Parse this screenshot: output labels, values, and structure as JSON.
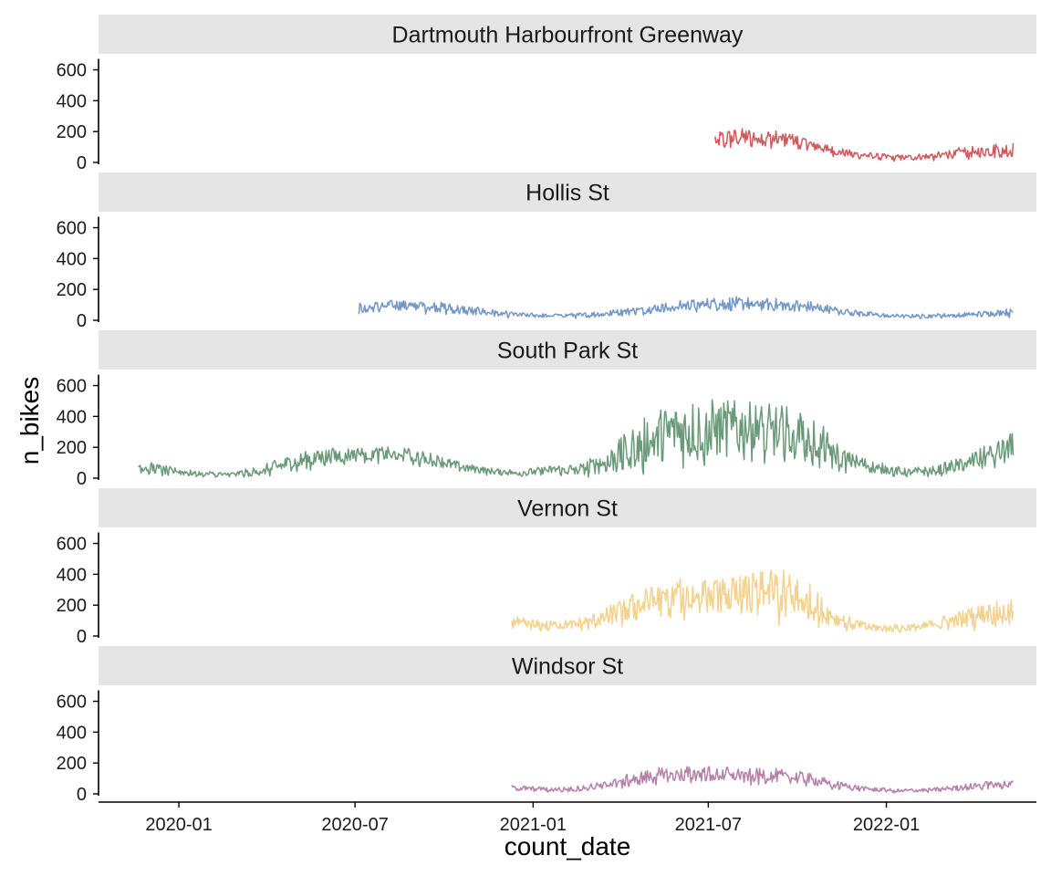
{
  "chart_data": {
    "type": "line",
    "xlabel": "count_date",
    "ylabel": "n_bikes",
    "x_ticks": [
      "2020-01",
      "2020-07",
      "2021-01",
      "2021-07",
      "2022-01"
    ],
    "y_ticks": [
      0,
      200,
      400,
      600
    ],
    "xlim": [
      "2019-10-10",
      "2022-06-05"
    ],
    "ylim": [
      0,
      680
    ],
    "grid": false,
    "legend": "none",
    "facets": "rows",
    "panels": [
      {
        "name": "Dartmouth Harbourfront Greenway",
        "color": "#D1585C",
        "profile": {
          "dates": [
            "2021-07-08",
            "2021-08-15",
            "2021-09-20",
            "2021-10-20",
            "2021-11-20",
            "2021-12-20",
            "2022-01-20",
            "2022-02-20",
            "2022-03-20",
            "2022-04-20",
            "2022-05-12"
          ],
          "mean": [
            150,
            170,
            150,
            110,
            60,
            40,
            30,
            45,
            65,
            80,
            85
          ],
          "amp": [
            60,
            55,
            50,
            40,
            25,
            20,
            18,
            22,
            35,
            45,
            50
          ]
        }
      },
      {
        "name": "Hollis St",
        "color": "#7397C5",
        "profile": {
          "dates": [
            "2020-07-05",
            "2020-08-15",
            "2020-09-20",
            "2020-10-20",
            "2020-11-20",
            "2020-12-20",
            "2021-01-20",
            "2021-02-20",
            "2021-03-20",
            "2021-04-20",
            "2021-05-20",
            "2021-06-20",
            "2021-07-20",
            "2021-08-20",
            "2021-09-20",
            "2021-10-20",
            "2021-11-20",
            "2021-12-20",
            "2022-01-20",
            "2022-02-20",
            "2022-03-20",
            "2022-04-20",
            "2022-05-12"
          ],
          "mean": [
            80,
            100,
            90,
            70,
            50,
            35,
            30,
            35,
            45,
            65,
            85,
            100,
            110,
            105,
            100,
            85,
            55,
            35,
            25,
            30,
            35,
            45,
            55
          ],
          "amp": [
            35,
            35,
            35,
            30,
            20,
            15,
            12,
            15,
            20,
            25,
            35,
            40,
            45,
            45,
            40,
            35,
            20,
            15,
            12,
            14,
            15,
            20,
            25
          ]
        }
      },
      {
        "name": "South Park St",
        "color": "#6A9A79",
        "profile": {
          "dates": [
            "2019-11-20",
            "2019-12-20",
            "2020-01-20",
            "2020-02-20",
            "2020-03-20",
            "2020-04-20",
            "2020-05-20",
            "2020-06-20",
            "2020-07-20",
            "2020-08-20",
            "2020-09-20",
            "2020-10-20",
            "2020-11-20",
            "2020-12-20",
            "2021-01-20",
            "2021-02-20",
            "2021-03-20",
            "2021-04-20",
            "2021-05-20",
            "2021-06-20",
            "2021-07-20",
            "2021-08-20",
            "2021-09-20",
            "2021-10-20",
            "2021-11-20",
            "2021-12-20",
            "2022-01-20",
            "2022-02-20",
            "2022-03-20",
            "2022-04-20",
            "2022-05-12"
          ],
          "mean": [
            80,
            50,
            30,
            25,
            40,
            90,
            130,
            150,
            160,
            155,
            120,
            70,
            45,
            35,
            55,
            60,
            110,
            220,
            300,
            330,
            320,
            310,
            300,
            250,
            120,
            70,
            40,
            50,
            90,
            150,
            200
          ],
          "amp": [
            40,
            30,
            15,
            15,
            30,
            50,
            60,
            50,
            45,
            45,
            40,
            30,
            20,
            20,
            30,
            40,
            80,
            150,
            180,
            190,
            190,
            180,
            170,
            140,
            60,
            40,
            25,
            30,
            50,
            80,
            100
          ]
        }
      },
      {
        "name": "Vernon St",
        "color": "#F2D28E",
        "profile": {
          "dates": [
            "2020-12-10",
            "2021-01-10",
            "2021-02-10",
            "2021-03-10",
            "2021-04-10",
            "2021-05-10",
            "2021-06-10",
            "2021-07-10",
            "2021-08-10",
            "2021-09-10",
            "2021-10-10",
            "2021-11-10",
            "2021-12-10",
            "2022-01-10",
            "2022-02-10",
            "2022-03-10",
            "2022-04-10",
            "2022-05-12"
          ],
          "mean": [
            90,
            70,
            75,
            110,
            180,
            230,
            260,
            260,
            270,
            290,
            240,
            110,
            60,
            50,
            65,
            100,
            140,
            160
          ],
          "amp": [
            40,
            30,
            30,
            50,
            90,
            110,
            120,
            110,
            130,
            160,
            130,
            50,
            30,
            25,
            30,
            50,
            70,
            80
          ]
        }
      },
      {
        "name": "Windsor St",
        "color": "#B681A9",
        "profile": {
          "dates": [
            "2020-12-10",
            "2021-01-10",
            "2021-02-10",
            "2021-03-10",
            "2021-04-10",
            "2021-05-10",
            "2021-06-10",
            "2021-07-10",
            "2021-08-10",
            "2021-09-10",
            "2021-10-10",
            "2021-11-10",
            "2021-12-10",
            "2022-01-10",
            "2022-02-10",
            "2022-03-10",
            "2022-04-10",
            "2022-05-12"
          ],
          "mean": [
            40,
            30,
            30,
            50,
            90,
            120,
            130,
            130,
            120,
            120,
            100,
            60,
            35,
            20,
            25,
            35,
            55,
            65
          ],
          "amp": [
            20,
            15,
            15,
            25,
            40,
            50,
            50,
            50,
            45,
            45,
            40,
            25,
            15,
            12,
            12,
            18,
            25,
            30
          ]
        }
      }
    ]
  }
}
